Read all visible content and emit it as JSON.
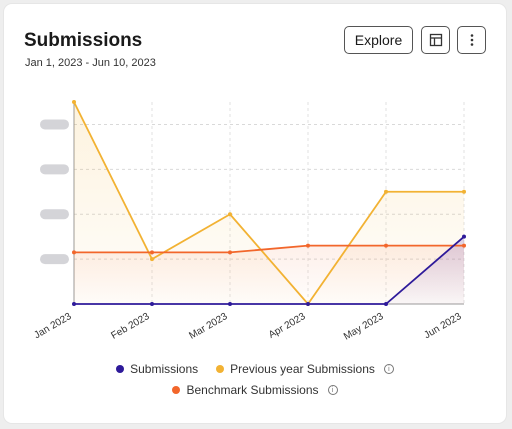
{
  "header": {
    "title": "Submissions",
    "date_range": "Jan 1, 2023 - Jun 10, 2023",
    "explore_label": "Explore",
    "table_icon": "table-icon",
    "more_icon": "more-vertical-icon"
  },
  "chart_data": {
    "type": "line",
    "categories": [
      "Jan 2023",
      "Feb 2023",
      "Mar 2023",
      "Apr 2023",
      "May 2023",
      "Jun 2023"
    ],
    "ylim": [
      0,
      45
    ],
    "ytick_values": [
      10,
      20,
      30,
      40
    ],
    "ytick_labels_hidden": true,
    "grid": true,
    "legend_position": "bottom",
    "series": [
      {
        "name": "Submissions",
        "values": [
          0,
          0,
          0,
          0,
          0,
          15
        ],
        "color": "#2e1a9a",
        "fill": true
      },
      {
        "name": "Previous year Submissions",
        "values": [
          45,
          10,
          20,
          0,
          25,
          25
        ],
        "color": "#f2b233",
        "fill": true
      },
      {
        "name": "Benchmark Submissions",
        "values": [
          11.5,
          11.5,
          11.5,
          13,
          13,
          13
        ],
        "color": "#f2662b",
        "fill": false
      }
    ]
  },
  "legend": {
    "submissions": "Submissions",
    "previous": "Previous year Submissions",
    "benchmark": "Benchmark Submissions"
  }
}
